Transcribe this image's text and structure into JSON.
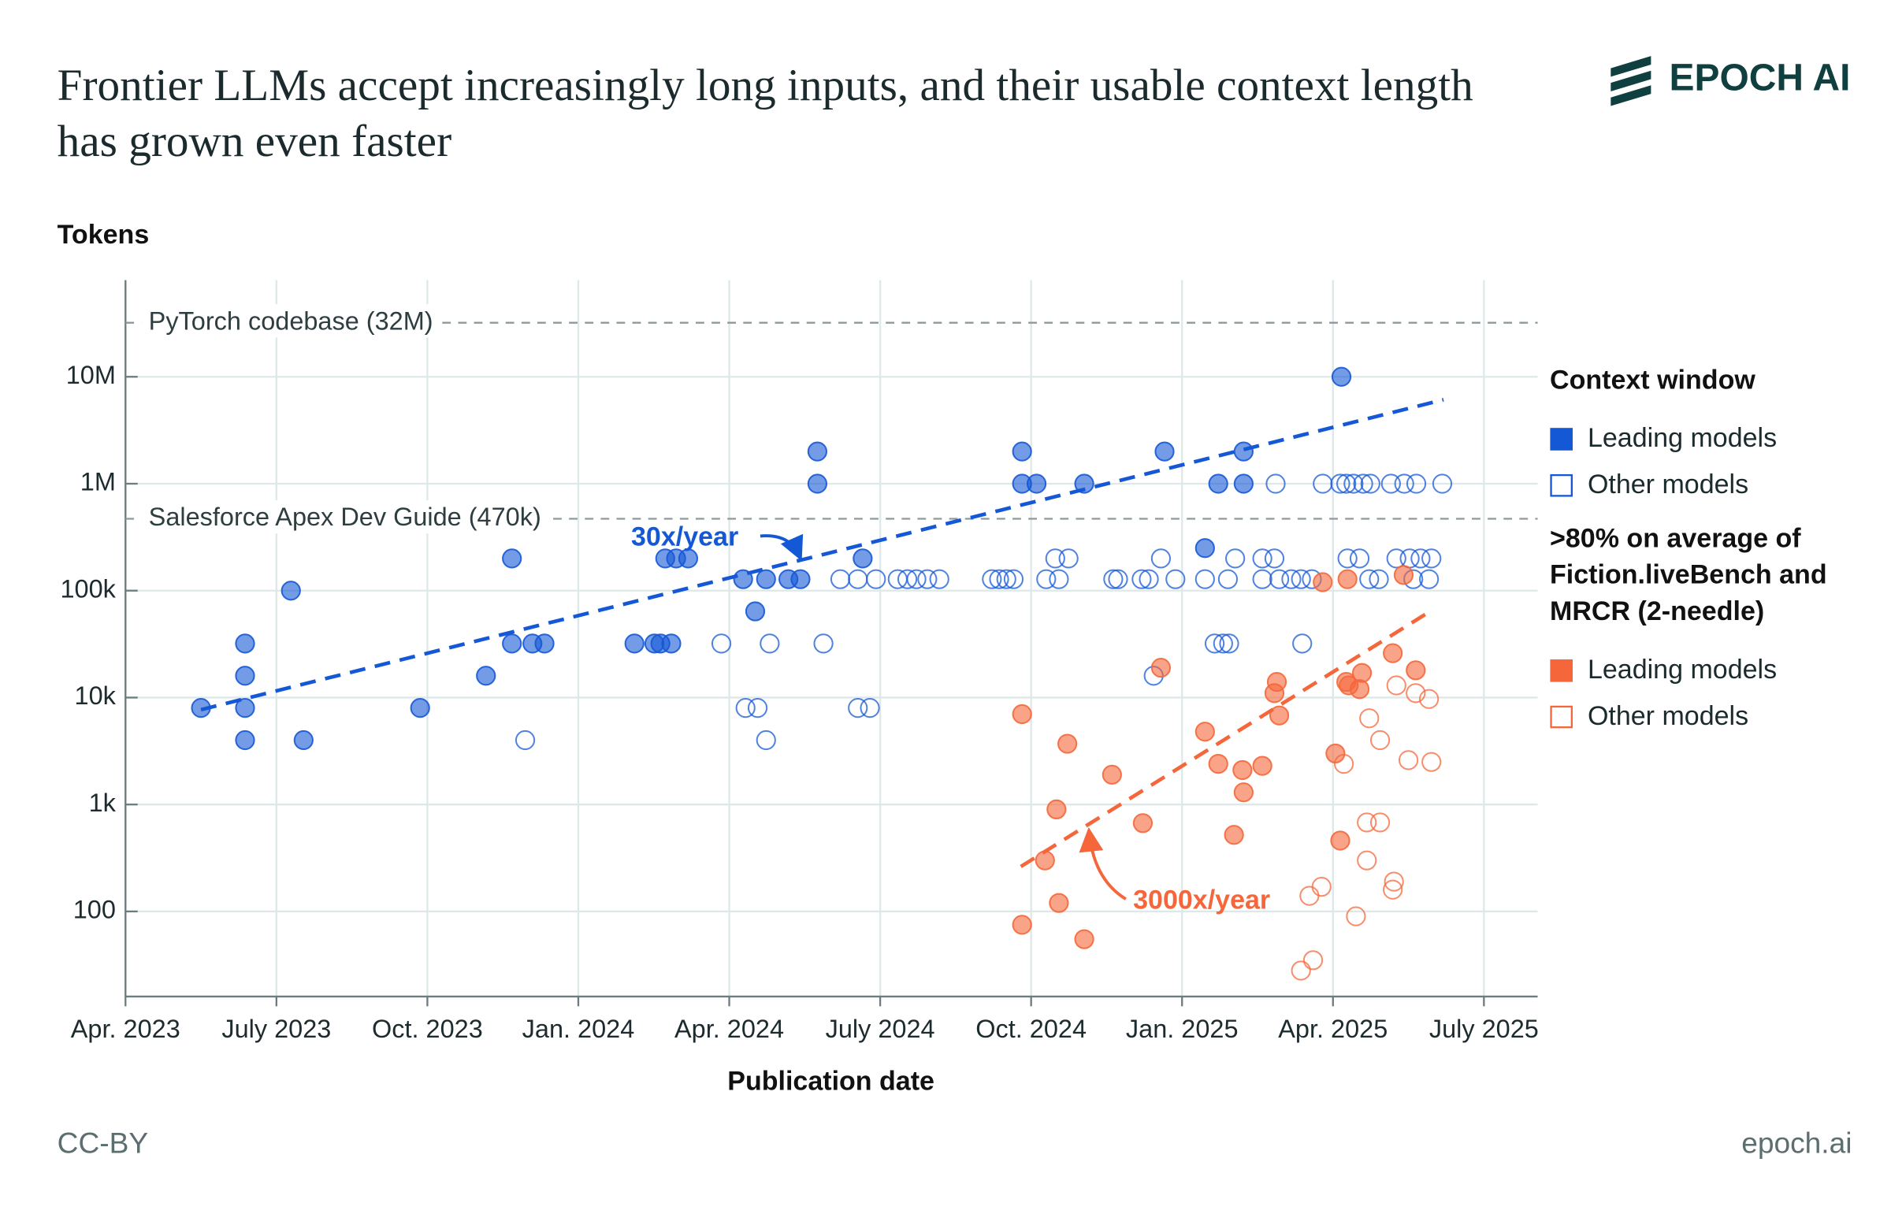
{
  "chart_data": {
    "type": "scatter",
    "title": "Frontier LLMs accept increasingly long inputs, and their usable context length has grown even faster",
    "logo": "EPOCH AI",
    "y_label": "Tokens",
    "x_label": "Publication date",
    "license": "CC-BY",
    "source": "epoch.ai",
    "log_y": true,
    "grid": true,
    "xlim": [
      2023.25,
      2025.589
    ],
    "ylim": [
      16,
      80000000
    ],
    "xticks": [
      {
        "value": 2023.25,
        "label": "Apr. 2023"
      },
      {
        "value": 2023.5,
        "label": "July 2023"
      },
      {
        "value": 2023.75,
        "label": "Oct. 2023"
      },
      {
        "value": 2024.0,
        "label": "Jan. 2024"
      },
      {
        "value": 2024.25,
        "label": "Apr. 2024"
      },
      {
        "value": 2024.5,
        "label": "July 2024"
      },
      {
        "value": 2024.75,
        "label": "Oct. 2024"
      },
      {
        "value": 2025.0,
        "label": "Jan. 2025"
      },
      {
        "value": 2025.25,
        "label": "Apr. 2025"
      },
      {
        "value": 2025.5,
        "label": "July 2025"
      }
    ],
    "yticks": [
      100,
      {
        "value": 1000,
        "label": "1k"
      },
      {
        "value": 10000,
        "label": "10k"
      },
      {
        "value": 100000,
        "label": "100k"
      },
      {
        "value": 1000000,
        "label": "1M"
      },
      {
        "value": 10000000,
        "label": "10M"
      }
    ],
    "reference_lines": [
      {
        "label": "PyTorch codebase (32M)",
        "value": 32000000
      },
      {
        "label": "Salesforce Apex Dev Guide (470k)",
        "value": 470000
      }
    ],
    "trends": [
      {
        "label": "30x/year",
        "color": "#1558d6",
        "x": [
          2023.375,
          2025.433
        ],
        "values": [
          7700,
          6100000
        ]
      },
      {
        "label": "3000x/year",
        "color": "#f5673a",
        "x": [
          2024.733,
          2025.407
        ],
        "values": [
          263,
          62000
        ]
      }
    ],
    "series_groups": [
      {
        "title": "Context window",
        "series": [
          {
            "name": "Leading models",
            "color": "#1558d6",
            "filled": true,
            "x": [
              2023.375,
              2023.448,
              2023.448,
              2023.448,
              2023.448,
              2023.524,
              2023.545,
              2023.738,
              2023.847,
              2023.89,
              2023.89,
              2023.924,
              2023.944,
              2024.093,
              2024.126,
              2024.136,
              2024.154,
              2024.144,
              2024.162,
              2024.182,
              2024.273,
              2024.293,
              2024.311,
              2024.348,
              2024.368,
              2024.396,
              2024.396,
              2024.471,
              2024.735,
              2024.735,
              2024.759,
              2024.838,
              2024.971,
              2025.038,
              2025.06,
              2025.102,
              2025.102,
              2025.264
            ],
            "values": [
              8000,
              32000,
              16000,
              8000,
              4000,
              100000,
              4000,
              8000,
              16000,
              200000,
              32000,
              32000,
              32000,
              32000,
              32000,
              32000,
              32000,
              200000,
              200000,
              200000,
              128000,
              64000,
              128000,
              128000,
              128000,
              2000000,
              1000000,
              200000,
              2000000,
              1000000,
              1000000,
              1000000,
              2000000,
              250000,
              1000000,
              2000000,
              1000000,
              10000000
            ]
          },
          {
            "name": "Other models",
            "color": "#1558d6",
            "filled": false,
            "x": [
              2023.912,
              2024.237,
              2024.277,
              2024.297,
              2024.311,
              2024.317,
              2024.406,
              2024.434,
              2024.463,
              2024.463,
              2024.483,
              2024.493,
              2024.529,
              2024.545,
              2024.56,
              2024.578,
              2024.598,
              2024.685,
              2024.697,
              2024.709,
              2024.721,
              2024.775,
              2024.79,
              2024.796,
              2024.812,
              2024.886,
              2024.894,
              2024.933,
              2024.945,
              2024.953,
              2024.965,
              2024.989,
              2025.038,
              2025.054,
              2025.068,
              2025.078,
              2025.076,
              2025.088,
              2025.133,
              2025.133,
              2025.155,
              2025.153,
              2025.161,
              2025.181,
              2025.197,
              2025.215,
              2025.199,
              2025.233,
              2025.262,
              2025.272,
              2025.284,
              2025.3,
              2025.312,
              2025.274,
              2025.294,
              2025.31,
              2025.326,
              2025.346,
              2025.368,
              2025.388,
              2025.355,
              2025.377,
              2025.395,
              2025.413,
              2025.383,
              2025.409,
              2025.431
            ],
            "values": [
              4000,
              32000,
              8000,
              8000,
              4000,
              32000,
              32000,
              128000,
              128000,
              8000,
              8000,
              128000,
              128000,
              128000,
              128000,
              128000,
              128000,
              128000,
              128000,
              128000,
              128000,
              128000,
              200000,
              128000,
              200000,
              128000,
              128000,
              128000,
              128000,
              16000,
              200000,
              128000,
              128000,
              32000,
              32000,
              32000,
              128000,
              200000,
              128000,
              200000,
              1000000,
              200000,
              128000,
              128000,
              128000,
              128000,
              32000,
              1000000,
              1000000,
              1000000,
              1000000,
              1000000,
              1000000,
              200000,
              200000,
              128000,
              128000,
              1000000,
              1000000,
              1000000,
              200000,
              200000,
              200000,
              200000,
              128000,
              128000,
              1000000
            ]
          }
        ]
      },
      {
        "title": ">80% on average of Fiction.liveBench and MRCR (2-needle)",
        "series": [
          {
            "name": "Leading models",
            "color": "#f5673a",
            "filled": true,
            "x": [
              2024.735,
              2024.735,
              2024.773,
              2024.792,
              2024.796,
              2024.81,
              2024.838,
              2024.884,
              2024.935,
              2024.965,
              2025.038,
              2025.06,
              2025.086,
              2025.1,
              2025.102,
              2025.133,
              2025.153,
              2025.157,
              2025.161,
              2025.233,
              2025.254,
              2025.262,
              2025.272,
              2025.274,
              2025.276,
              2025.294,
              2025.298,
              2025.349,
              2025.367,
              2025.387
            ],
            "values": [
              7000,
              75,
              300,
              900,
              120,
              3700,
              55,
              1900,
              670,
              19000,
              4800,
              2400,
              520,
              2100,
              1300,
              2300,
              11000,
              14000,
              6800,
              120000,
              3000,
              460,
              14000,
              128000,
              13000,
              12000,
              17000,
              26000,
              140000,
              18000
            ]
          },
          {
            "name": "Other models",
            "color": "#f5673a",
            "filled": false,
            "x": [
              2025.197,
              2025.217,
              2025.211,
              2025.231,
              2025.268,
              2025.288,
              2025.306,
              2025.306,
              2025.328,
              2025.31,
              2025.328,
              2025.349,
              2025.351,
              2025.355,
              2025.375,
              2025.387,
              2025.409,
              2025.413
            ],
            "values": [
              28,
              35,
              140,
              170,
              2400,
              90,
              680,
              300,
              680,
              6400,
              4000,
              160,
              190,
              13000,
              2600,
              11000,
              9700,
              2500
            ]
          }
        ]
      }
    ]
  }
}
